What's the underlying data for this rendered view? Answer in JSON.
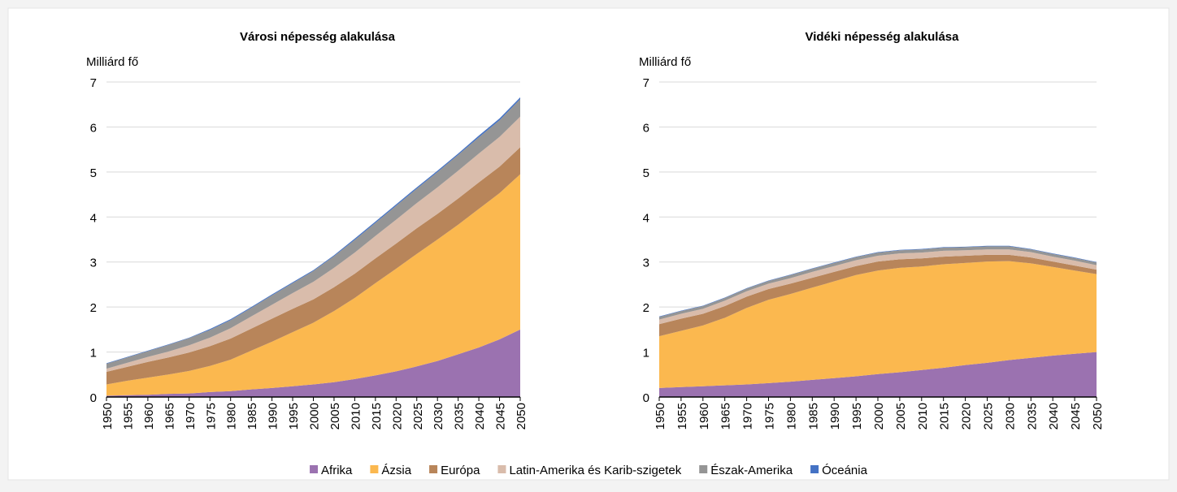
{
  "chart_data": [
    {
      "type": "area",
      "title": "Városi népesség alakulása",
      "y_label": "Milliárd fő",
      "x": [
        1950,
        1955,
        1960,
        1965,
        1970,
        1975,
        1980,
        1985,
        1990,
        1995,
        2000,
        2005,
        2010,
        2015,
        2020,
        2025,
        2030,
        2035,
        2040,
        2045,
        2050
      ],
      "xlim": [
        1950,
        2050
      ],
      "ylim": [
        0,
        7
      ],
      "yticks": [
        0,
        1,
        2,
        3,
        4,
        5,
        6,
        7
      ],
      "grid": true,
      "series": [
        {
          "name": "Afrika",
          "color": "#9b72b0",
          "values": [
            0.03,
            0.04,
            0.05,
            0.07,
            0.08,
            0.11,
            0.13,
            0.17,
            0.2,
            0.24,
            0.28,
            0.33,
            0.4,
            0.48,
            0.57,
            0.68,
            0.8,
            0.95,
            1.1,
            1.28,
            1.5
          ]
        },
        {
          "name": "Ázsia",
          "color": "#fbb84f",
          "values": [
            0.25,
            0.32,
            0.38,
            0.43,
            0.5,
            0.58,
            0.7,
            0.86,
            1.03,
            1.2,
            1.37,
            1.58,
            1.8,
            2.05,
            2.28,
            2.5,
            2.7,
            2.88,
            3.08,
            3.25,
            3.45
          ]
        },
        {
          "name": "Európa",
          "color": "#b8855a",
          "values": [
            0.28,
            0.31,
            0.35,
            0.38,
            0.41,
            0.44,
            0.47,
            0.49,
            0.51,
            0.52,
            0.52,
            0.53,
            0.54,
            0.55,
            0.56,
            0.57,
            0.57,
            0.58,
            0.59,
            0.59,
            0.6
          ]
        },
        {
          "name": "Latin-Amerika és Karib-szigetek",
          "color": "#d9bcab",
          "values": [
            0.07,
            0.09,
            0.11,
            0.13,
            0.16,
            0.19,
            0.23,
            0.27,
            0.31,
            0.35,
            0.39,
            0.43,
            0.47,
            0.5,
            0.53,
            0.56,
            0.59,
            0.62,
            0.64,
            0.66,
            0.68
          ]
        },
        {
          "name": "Észak-Amerika",
          "color": "#959595",
          "values": [
            0.11,
            0.12,
            0.13,
            0.15,
            0.16,
            0.17,
            0.18,
            0.19,
            0.21,
            0.22,
            0.24,
            0.26,
            0.28,
            0.29,
            0.31,
            0.32,
            0.34,
            0.35,
            0.36,
            0.37,
            0.39
          ]
        },
        {
          "name": "Óceánia",
          "color": "#4472c4",
          "values": [
            0.01,
            0.01,
            0.01,
            0.01,
            0.01,
            0.02,
            0.02,
            0.02,
            0.02,
            0.02,
            0.02,
            0.02,
            0.03,
            0.03,
            0.03,
            0.03,
            0.03,
            0.03,
            0.04,
            0.04,
            0.04
          ]
        }
      ]
    },
    {
      "type": "area",
      "title": "Vidéki népesség alakulása",
      "y_label": "Milliárd fő",
      "x": [
        1950,
        1955,
        1960,
        1965,
        1970,
        1975,
        1980,
        1985,
        1990,
        1995,
        2000,
        2005,
        2010,
        2015,
        2020,
        2025,
        2030,
        2035,
        2040,
        2045,
        2050
      ],
      "xlim": [
        1950,
        2050
      ],
      "ylim": [
        0,
        7
      ],
      "yticks": [
        0,
        1,
        2,
        3,
        4,
        5,
        6,
        7
      ],
      "grid": true,
      "series": [
        {
          "values": [
            0.2,
            0.22,
            0.24,
            0.26,
            0.28,
            0.31,
            0.34,
            0.38,
            0.42,
            0.46,
            0.51,
            0.55,
            0.6,
            0.65,
            0.71,
            0.76,
            0.82,
            0.87,
            0.92,
            0.96,
            1.0
          ]
        },
        {
          "values": [
            1.15,
            1.25,
            1.35,
            1.5,
            1.7,
            1.85,
            1.95,
            2.05,
            2.15,
            2.25,
            2.3,
            2.32,
            2.3,
            2.3,
            2.27,
            2.25,
            2.2,
            2.1,
            1.97,
            1.85,
            1.73
          ]
        },
        {
          "values": [
            0.27,
            0.27,
            0.26,
            0.26,
            0.25,
            0.24,
            0.23,
            0.22,
            0.21,
            0.2,
            0.2,
            0.19,
            0.18,
            0.17,
            0.16,
            0.15,
            0.14,
            0.13,
            0.12,
            0.11,
            0.1
          ]
        },
        {
          "values": [
            0.1,
            0.11,
            0.11,
            0.12,
            0.12,
            0.12,
            0.12,
            0.13,
            0.13,
            0.13,
            0.13,
            0.13,
            0.13,
            0.13,
            0.12,
            0.12,
            0.12,
            0.12,
            0.11,
            0.11,
            0.1
          ]
        },
        {
          "values": [
            0.06,
            0.06,
            0.06,
            0.06,
            0.06,
            0.06,
            0.07,
            0.07,
            0.07,
            0.07,
            0.07,
            0.07,
            0.07,
            0.07,
            0.07,
            0.07,
            0.07,
            0.06,
            0.06,
            0.06,
            0.06
          ]
        },
        {
          "values": [
            0.01,
            0.01,
            0.01,
            0.01,
            0.01,
            0.01,
            0.01,
            0.01,
            0.01,
            0.01,
            0.01,
            0.01,
            0.01,
            0.01,
            0.01,
            0.01,
            0.01,
            0.01,
            0.01,
            0.01,
            0.01
          ]
        }
      ]
    }
  ]
}
